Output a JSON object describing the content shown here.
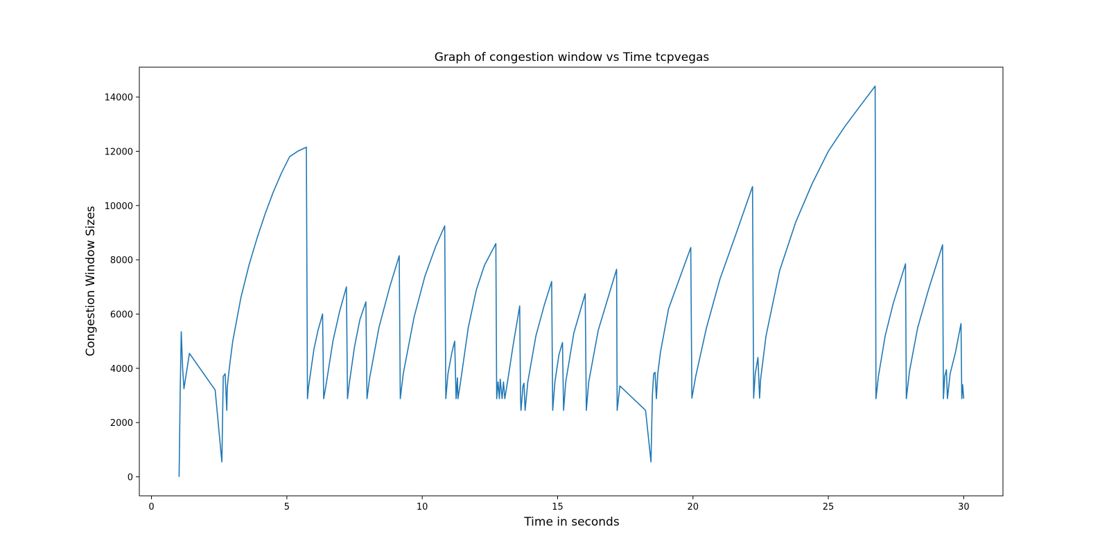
{
  "chart_data": {
    "type": "line",
    "title": "Graph of congestion window vs Time tcpvegas",
    "xlabel": "Time in seconds",
    "ylabel": "Congestion Window Sizes",
    "xlim": [
      -0.45,
      31.45
    ],
    "ylim": [
      -700,
      15100
    ],
    "xticks": [
      0,
      5,
      10,
      15,
      20,
      25,
      30
    ],
    "yticks": [
      0,
      2000,
      4000,
      6000,
      8000,
      10000,
      12000,
      14000
    ],
    "grid": false,
    "line_color": "#1f77b4",
    "series": [
      {
        "x": [
          1.02,
          1.06,
          1.1,
          1.15,
          1.2,
          1.4,
          2.35,
          2.6,
          2.65,
          2.72,
          2.78,
          2.8,
          2.85,
          2.9,
          3.0,
          3.3,
          3.6,
          3.9,
          4.2,
          4.5,
          4.8,
          5.1,
          5.4,
          5.72,
          5.76,
          5.8,
          6.0,
          6.15,
          6.32,
          6.36,
          6.45,
          6.7,
          6.95,
          7.2,
          7.24,
          7.3,
          7.5,
          7.7,
          7.92,
          7.96,
          8.05,
          8.4,
          8.8,
          9.15,
          9.19,
          9.3,
          9.7,
          10.1,
          10.5,
          10.83,
          10.87,
          10.95,
          11.1,
          11.2,
          11.25,
          11.3,
          11.32,
          11.4,
          11.7,
          12.0,
          12.3,
          12.72,
          12.75,
          12.8,
          12.85,
          12.88,
          12.95,
          13.0,
          13.05,
          13.15,
          13.35,
          13.6,
          13.63,
          13.65,
          13.72,
          13.76,
          13.8,
          13.9,
          14.2,
          14.5,
          14.78,
          14.82,
          14.9,
          15.05,
          15.18,
          15.22,
          15.3,
          15.6,
          16.02,
          16.06,
          16.15,
          16.5,
          17.18,
          17.2,
          17.3,
          18.25,
          18.45,
          18.5,
          18.55,
          18.6,
          18.65,
          18.7,
          18.8,
          19.1,
          19.5,
          19.92,
          19.96,
          20.1,
          20.5,
          21.0,
          21.5,
          22.2,
          22.24,
          22.3,
          22.4,
          22.46,
          22.5,
          22.7,
          23.2,
          23.8,
          24.4,
          25.0,
          25.6,
          26.2,
          26.73,
          26.76,
          26.85,
          27.1,
          27.4,
          27.85,
          27.88,
          28.0,
          28.3,
          28.7,
          29.22,
          29.25,
          29.3,
          29.36,
          29.4,
          29.5,
          29.7,
          29.9,
          29.93,
          29.96,
          30.0
        ],
        "y": [
          0,
          3200,
          5350,
          4000,
          3250,
          4550,
          3200,
          550,
          3700,
          3800,
          2450,
          3300,
          3800,
          4200,
          5000,
          6600,
          7800,
          8800,
          9700,
          10500,
          11200,
          11800,
          12000,
          12150,
          2880,
          3300,
          4700,
          5400,
          6000,
          2880,
          3400,
          5000,
          6100,
          7000,
          2880,
          3400,
          4800,
          5800,
          6450,
          2880,
          3600,
          5500,
          7000,
          8150,
          2880,
          3800,
          5900,
          7400,
          8500,
          9250,
          2880,
          3800,
          4600,
          5000,
          2880,
          3650,
          2880,
          3400,
          5500,
          6900,
          7800,
          8600,
          2880,
          3500,
          2880,
          3600,
          2880,
          3500,
          2880,
          3500,
          4800,
          6300,
          2880,
          2450,
          3350,
          3450,
          2450,
          3500,
          5200,
          6300,
          7200,
          2450,
          3500,
          4500,
          4950,
          2450,
          3500,
          5300,
          6750,
          2450,
          3500,
          5400,
          7650,
          2450,
          3350,
          2450,
          550,
          3000,
          3800,
          3850,
          2880,
          3800,
          4600,
          6200,
          7300,
          8450,
          2900,
          3700,
          5500,
          7300,
          8700,
          10700,
          2900,
          3800,
          4400,
          2900,
          3600,
          5200,
          7600,
          9400,
          10800,
          12000,
          12900,
          13700,
          14400,
          2880,
          3700,
          5200,
          6400,
          7850,
          2880,
          3900,
          5500,
          6900,
          8550,
          2880,
          3700,
          3950,
          2880,
          3800,
          4600,
          5650,
          2880,
          3400,
          2880
        ]
      }
    ]
  }
}
